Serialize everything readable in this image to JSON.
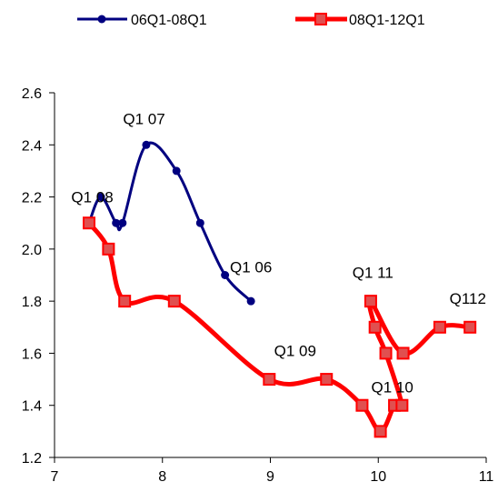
{
  "chart_data": {
    "type": "line",
    "title": "",
    "xlabel": "",
    "ylabel": "",
    "xlim": [
      7,
      11
    ],
    "ylim": [
      1.2,
      2.6
    ],
    "xticks": [
      "7",
      "8",
      "9",
      "10",
      "11"
    ],
    "yticks": [
      "1.2",
      "1.4",
      "1.6",
      "1.8",
      "2.0",
      "2.2",
      "2.4",
      "2.6"
    ],
    "grid": false,
    "legend_position": "top",
    "series": [
      {
        "name": "06Q1-08Q1",
        "color": "#000080",
        "marker": "circle",
        "points": [
          {
            "x": 8.82,
            "y": 1.8
          },
          {
            "x": 8.58,
            "y": 1.9
          },
          {
            "x": 8.35,
            "y": 2.1
          },
          {
            "x": 8.13,
            "y": 2.3
          },
          {
            "x": 7.85,
            "y": 2.4
          },
          {
            "x": 7.63,
            "y": 2.1
          },
          {
            "x": 7.57,
            "y": 2.1
          },
          {
            "x": 7.43,
            "y": 2.2
          },
          {
            "x": 7.32,
            "y": 2.1
          }
        ]
      },
      {
        "name": "08Q1-12Q1",
        "color": "#ff0000",
        "marker": "square",
        "points": [
          {
            "x": 7.32,
            "y": 2.1
          },
          {
            "x": 7.5,
            "y": 2.0
          },
          {
            "x": 7.65,
            "y": 1.8
          },
          {
            "x": 8.11,
            "y": 1.8
          },
          {
            "x": 8.99,
            "y": 1.5
          },
          {
            "x": 9.52,
            "y": 1.5
          },
          {
            "x": 9.85,
            "y": 1.4
          },
          {
            "x": 10.02,
            "y": 1.3
          },
          {
            "x": 10.15,
            "y": 1.4
          },
          {
            "x": 10.22,
            "y": 1.4
          },
          {
            "x": 10.07,
            "y": 1.6
          },
          {
            "x": 9.97,
            "y": 1.7
          },
          {
            "x": 9.93,
            "y": 1.8
          },
          {
            "x": 10.23,
            "y": 1.6
          },
          {
            "x": 10.57,
            "y": 1.7
          },
          {
            "x": 10.85,
            "y": 1.7
          }
        ]
      }
    ],
    "annotations": [
      {
        "text": "Q1 06",
        "x": 8.82,
        "y": 1.91
      },
      {
        "text": "Q1 07",
        "x": 7.83,
        "y": 2.48
      },
      {
        "text": "Q1 08",
        "x": 7.35,
        "y": 2.18
      },
      {
        "text": "Q1 09",
        "x": 9.23,
        "y": 1.59
      },
      {
        "text": "Q1 10",
        "x": 10.13,
        "y": 1.45
      },
      {
        "text": "Q1 11",
        "x": 9.95,
        "y": 1.89
      },
      {
        "text": "Q112",
        "x": 10.83,
        "y": 1.79
      }
    ]
  }
}
